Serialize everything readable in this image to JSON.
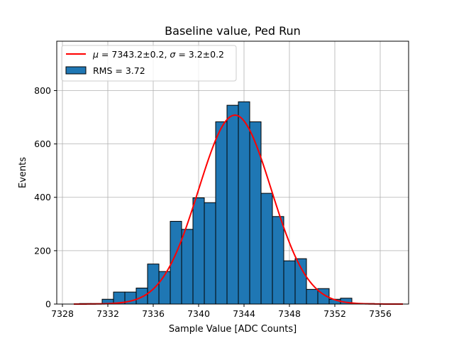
{
  "chart_data": {
    "type": "bar",
    "title": "Baseline value, Ped Run",
    "xlabel": "Sample Value [ADC Counts]",
    "ylabel": "Events",
    "xlim": [
      7327.5,
      7358.5
    ],
    "ylim": [
      0,
      985
    ],
    "grid": true,
    "legend_position": "top-left",
    "x_ticks": [
      7328,
      7332,
      7336,
      7340,
      7344,
      7348,
      7352,
      7356
    ],
    "y_ticks": [
      0,
      200,
      400,
      600,
      800
    ],
    "bin_width": 1,
    "bins": [
      {
        "x": 7330,
        "count": 2
      },
      {
        "x": 7331,
        "count": 2
      },
      {
        "x": 7332,
        "count": 18
      },
      {
        "x": 7333,
        "count": 45
      },
      {
        "x": 7334,
        "count": 45
      },
      {
        "x": 7335,
        "count": 60
      },
      {
        "x": 7336,
        "count": 150
      },
      {
        "x": 7337,
        "count": 122
      },
      {
        "x": 7338,
        "count": 310
      },
      {
        "x": 7339,
        "count": 280
      },
      {
        "x": 7340,
        "count": 398
      },
      {
        "x": 7341,
        "count": 380
      },
      {
        "x": 7342,
        "count": 683
      },
      {
        "x": 7343,
        "count": 745
      },
      {
        "x": 7344,
        "count": 758
      },
      {
        "x": 7345,
        "count": 683
      },
      {
        "x": 7346,
        "count": 415
      },
      {
        "x": 7347,
        "count": 328
      },
      {
        "x": 7348,
        "count": 162
      },
      {
        "x": 7349,
        "count": 170
      },
      {
        "x": 7350,
        "count": 55
      },
      {
        "x": 7351,
        "count": 58
      },
      {
        "x": 7352,
        "count": 18
      },
      {
        "x": 7353,
        "count": 22
      },
      {
        "x": 7354,
        "count": 2
      },
      {
        "x": 7355,
        "count": 2
      }
    ],
    "fit": {
      "model": "gaussian",
      "mu": 7343.2,
      "sigma": 3.2,
      "amplitude": 708,
      "x_range": [
        7329,
        7358
      ]
    },
    "series": [
      {
        "name": "RMS = 3.72",
        "kind": "histogram",
        "color": "#1f77b4"
      },
      {
        "name": "μ = 7343.2±0.2, σ = 3.2±0.2",
        "kind": "fit-line",
        "color": "#ff0000"
      }
    ],
    "legend": {
      "fit_label_parts": [
        "μ",
        " = 7343.2±0.2, ",
        "σ",
        " = 3.2±0.2"
      ],
      "hist_label": "RMS = 3.72"
    }
  }
}
